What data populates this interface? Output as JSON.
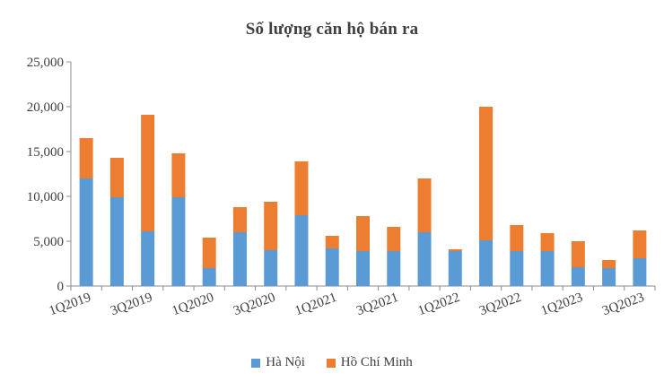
{
  "chart_data": {
    "type": "bar",
    "stacked": true,
    "title": "Số lượng căn hộ bán ra",
    "xlabel": "",
    "ylabel": "",
    "ylim": [
      0,
      25000
    ],
    "yticks": [
      "0",
      "5,000",
      "10,000",
      "15,000",
      "20,000",
      "25,000"
    ],
    "categories": [
      "1Q2019",
      "2Q2019",
      "3Q2019",
      "4Q2019",
      "1Q2020",
      "2Q2020",
      "3Q2020",
      "4Q2020",
      "1Q2021",
      "2Q2021",
      "3Q2021",
      "4Q2021",
      "1Q2022",
      "2Q2022",
      "3Q2022",
      "4Q2022",
      "1Q2023",
      "2Q2023",
      "3Q2023"
    ],
    "xtick_labels": [
      "1Q2019",
      "",
      "3Q2019",
      "",
      "1Q2020",
      "",
      "3Q2020",
      "",
      "1Q2021",
      "",
      "3Q2021",
      "",
      "1Q2022",
      "",
      "3Q2022",
      "",
      "1Q2023",
      "",
      "3Q2023"
    ],
    "series": [
      {
        "name": "Hà Nội",
        "color": "#5B9BD5",
        "values": [
          12000,
          9900,
          6100,
          9900,
          2000,
          6000,
          4000,
          7900,
          4200,
          3900,
          3900,
          6000,
          3900,
          5100,
          3900,
          3900,
          2100,
          2000,
          3100
        ]
      },
      {
        "name": "Hồ Chí Minh",
        "color": "#ED7D31",
        "values": [
          4500,
          4400,
          13000,
          4900,
          3400,
          2800,
          5400,
          6000,
          1400,
          3900,
          2700,
          6000,
          200,
          14900,
          2900,
          2000,
          2900,
          900,
          3100
        ]
      }
    ],
    "legend_position": "bottom",
    "grid": false
  }
}
